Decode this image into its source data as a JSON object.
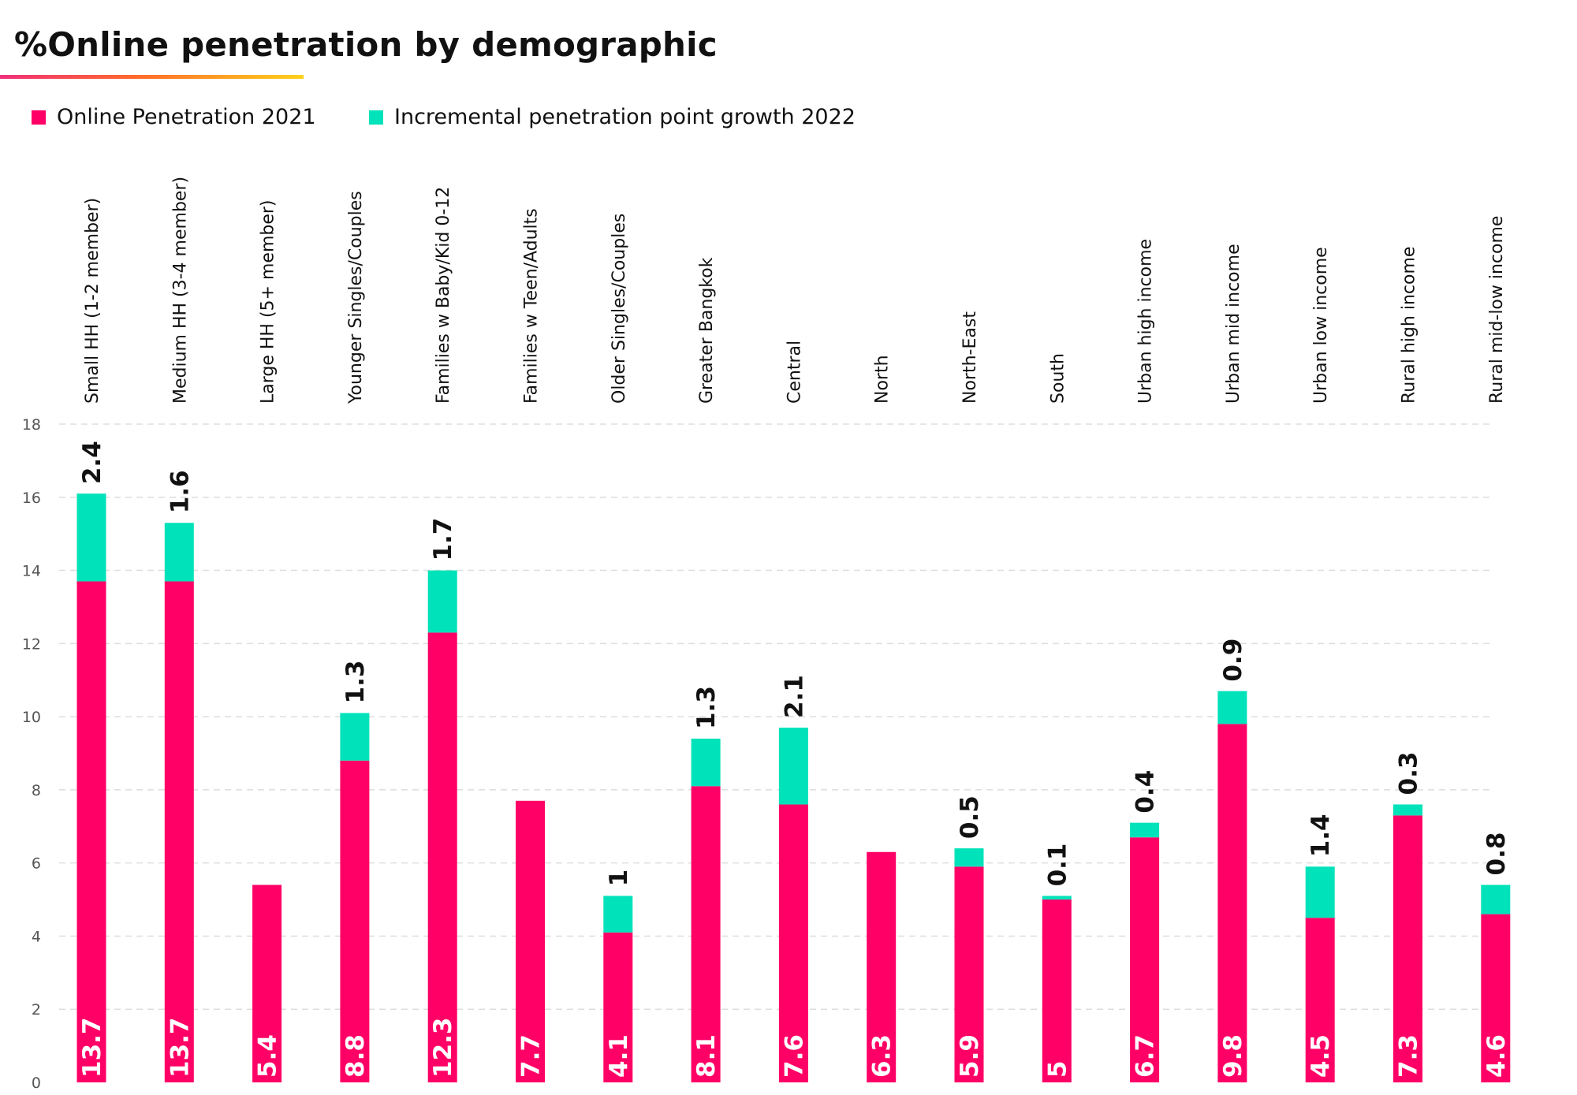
{
  "title": "%Online penetration by demographic",
  "legend": {
    "base_label": "Online Penetration 2021",
    "growth_label": "Incremental penetration point growth 2022"
  },
  "colors": {
    "base": "#ff0066",
    "growth": "#00e2b9",
    "grid": "#dddddd",
    "axis_text": "#555555"
  },
  "chart_data": {
    "type": "bar",
    "stacked": true,
    "title": "%Online penetration by demographic",
    "xlabel": "",
    "ylabel": "",
    "ylim": [
      0,
      18
    ],
    "yticks": [
      0,
      2,
      4,
      6,
      8,
      10,
      12,
      14,
      16,
      18
    ],
    "grid": true,
    "legend_position": "top-left",
    "categories": [
      "Small HH (1-2 member)",
      "Medium HH (3-4 member)",
      "Large HH (5+ member)",
      "Younger Singles/Couples",
      "Families w Baby/Kid 0-12",
      "Families w Teen/Adults",
      "Older Singles/Couples",
      "Greater Bangkok",
      "Central",
      "North",
      "North-East",
      "South",
      "Urban high income",
      "Urban mid income",
      "Urban low income",
      "Rural high income",
      "Rural mid-low income"
    ],
    "series": [
      {
        "name": "Online Penetration 2021",
        "values": [
          13.7,
          13.7,
          5.4,
          8.8,
          12.3,
          7.7,
          4.1,
          8.1,
          7.6,
          6.3,
          5.9,
          5,
          6.7,
          9.8,
          4.5,
          7.3,
          4.6
        ],
        "labels": [
          "13.7",
          "13.7",
          "5.4",
          "8.8",
          "12.3",
          "7.7",
          "4.1",
          "8.1",
          "7.6",
          "6.3",
          "5.9",
          "5",
          "6.7",
          "9.8",
          "4.5",
          "7.3",
          "4.6"
        ]
      },
      {
        "name": "Incremental penetration point growth 2022",
        "values": [
          2.4,
          1.6,
          null,
          1.3,
          1.7,
          null,
          1,
          1.3,
          2.1,
          null,
          0.5,
          0.1,
          0.4,
          0.9,
          1.4,
          0.3,
          0.8
        ],
        "labels": [
          "2.4",
          "1.6",
          "",
          "1.3",
          "1.7",
          "",
          "1",
          "1.3",
          "2.1",
          "",
          "0.5",
          "0.1",
          "0.4",
          "0.9",
          "1.4",
          "0.3",
          "0.8"
        ]
      }
    ]
  }
}
